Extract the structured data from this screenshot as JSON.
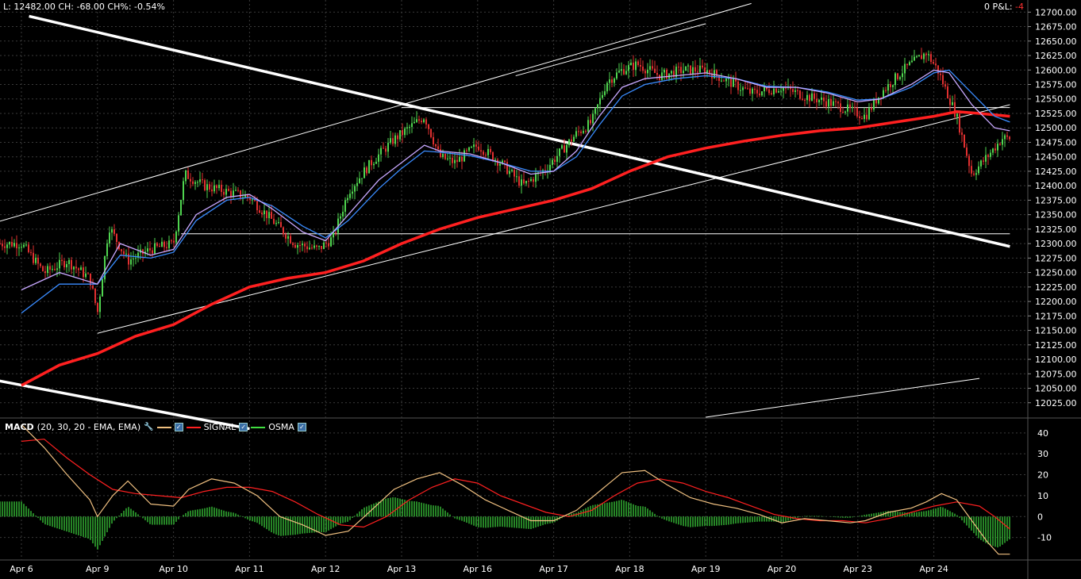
{
  "header": {
    "quote_text": "L: 12482.00 CH: -68.00 CH%: -0.54%",
    "pl_label": "0 P&L:",
    "pl_value": "-4"
  },
  "macd_legend": {
    "name": "MACD",
    "params": "(20, 30, 20 - EMA, EMA)",
    "signal_label": "SIGNAL",
    "osma_label": "OSMA"
  },
  "colors": {
    "background": "#000000",
    "grid": "#3a3a3a",
    "candle": "#4fd44f",
    "candle_down": "#e03030",
    "ema_fast": "#c8a8ff",
    "ema_slow": "#3a8cff",
    "sma_long": "#ff2020",
    "trend": "#ffffff",
    "macd": "#f0c080",
    "signal": "#ff2020",
    "osma": "#40dd40"
  },
  "chart_data": [
    {
      "type": "candlestick",
      "x_labels": [
        "Apr 6",
        "Apr 9",
        "Apr 10",
        "Apr 11",
        "Apr 12",
        "Apr 13",
        "Apr 16",
        "Apr 17",
        "Apr 18",
        "Apr 19",
        "Apr 20",
        "Apr 23",
        "Apr 24"
      ],
      "y_ticks": [
        "12700.00",
        "12675.00",
        "12650.00",
        "12625.00",
        "12600.00",
        "12575.00",
        "12550.00",
        "12525.00",
        "12500.00",
        "12475.00",
        "12450.00",
        "12425.00",
        "12400.00",
        "12375.00",
        "12350.00",
        "12325.00",
        "12300.00",
        "12275.00",
        "12250.00",
        "12225.00",
        "12200.00",
        "12175.00",
        "12150.00",
        "12125.00",
        "12100.00",
        "12075.00",
        "12050.00",
        "12025.00"
      ],
      "ylim": [
        12000,
        12710
      ],
      "last_price": 12482,
      "close_path": [
        [
          0,
          12300
        ],
        [
          0.3,
          12250
        ],
        [
          0.6,
          12270
        ],
        [
          0.9,
          12240
        ],
        [
          1.0,
          12180
        ],
        [
          1.15,
          12330
        ],
        [
          1.4,
          12270
        ],
        [
          1.7,
          12290
        ],
        [
          2.0,
          12300
        ],
        [
          2.15,
          12420
        ],
        [
          2.4,
          12400
        ],
        [
          2.7,
          12390
        ],
        [
          3.0,
          12380
        ],
        [
          3.3,
          12340
        ],
        [
          3.6,
          12300
        ],
        [
          3.9,
          12290
        ],
        [
          4.1,
          12310
        ],
        [
          4.3,
          12390
        ],
        [
          4.6,
          12440
        ],
        [
          4.9,
          12480
        ],
        [
          5.1,
          12500
        ],
        [
          5.3,
          12520
        ],
        [
          5.5,
          12450
        ],
        [
          5.7,
          12440
        ],
        [
          6.0,
          12470
        ],
        [
          6.3,
          12440
        ],
        [
          6.6,
          12400
        ],
        [
          6.9,
          12430
        ],
        [
          7.1,
          12460
        ],
        [
          7.3,
          12490
        ],
        [
          7.5,
          12510
        ],
        [
          7.7,
          12580
        ],
        [
          7.9,
          12600
        ],
        [
          8.1,
          12610
        ],
        [
          8.4,
          12590
        ],
        [
          8.7,
          12600
        ],
        [
          9.0,
          12600
        ],
        [
          9.3,
          12580
        ],
        [
          9.6,
          12560
        ],
        [
          10.0,
          12570
        ],
        [
          10.3,
          12555
        ],
        [
          10.6,
          12545
        ],
        [
          10.9,
          12530
        ],
        [
          11.1,
          12520
        ],
        [
          11.3,
          12560
        ],
        [
          11.6,
          12600
        ],
        [
          11.9,
          12630
        ],
        [
          12.05,
          12600
        ],
        [
          12.3,
          12520
        ],
        [
          12.5,
          12420
        ],
        [
          12.7,
          12450
        ],
        [
          12.9,
          12482
        ]
      ],
      "ema_fast_path": [
        [
          0,
          12220
        ],
        [
          0.5,
          12250
        ],
        [
          1.0,
          12230
        ],
        [
          1.3,
          12300
        ],
        [
          1.7,
          12280
        ],
        [
          2.0,
          12290
        ],
        [
          2.3,
          12350
        ],
        [
          2.7,
          12380
        ],
        [
          3.0,
          12385
        ],
        [
          3.3,
          12360
        ],
        [
          3.7,
          12320
        ],
        [
          4.0,
          12305
        ],
        [
          4.3,
          12350
        ],
        [
          4.7,
          12410
        ],
        [
          5.0,
          12440
        ],
        [
          5.3,
          12470
        ],
        [
          5.5,
          12460
        ],
        [
          5.9,
          12455
        ],
        [
          6.3,
          12440
        ],
        [
          6.7,
          12420
        ],
        [
          7.0,
          12425
        ],
        [
          7.3,
          12460
        ],
        [
          7.6,
          12520
        ],
        [
          7.9,
          12570
        ],
        [
          8.2,
          12585
        ],
        [
          8.6,
          12590
        ],
        [
          9.0,
          12595
        ],
        [
          9.4,
          12585
        ],
        [
          9.8,
          12570
        ],
        [
          10.2,
          12570
        ],
        [
          10.6,
          12560
        ],
        [
          11.0,
          12545
        ],
        [
          11.3,
          12550
        ],
        [
          11.7,
          12575
        ],
        [
          12.0,
          12600
        ],
        [
          12.2,
          12595
        ],
        [
          12.5,
          12540
        ],
        [
          12.8,
          12500
        ],
        [
          13.0,
          12495
        ]
      ],
      "ema_slow_path": [
        [
          0,
          12180
        ],
        [
          0.5,
          12230
        ],
        [
          1.0,
          12230
        ],
        [
          1.3,
          12280
        ],
        [
          1.7,
          12275
        ],
        [
          2.0,
          12285
        ],
        [
          2.3,
          12340
        ],
        [
          2.7,
          12375
        ],
        [
          3.0,
          12380
        ],
        [
          3.3,
          12365
        ],
        [
          3.7,
          12330
        ],
        [
          4.0,
          12310
        ],
        [
          4.3,
          12340
        ],
        [
          4.7,
          12395
        ],
        [
          5.0,
          12430
        ],
        [
          5.3,
          12460
        ],
        [
          5.5,
          12458
        ],
        [
          5.9,
          12452
        ],
        [
          6.3,
          12440
        ],
        [
          6.7,
          12425
        ],
        [
          7.0,
          12425
        ],
        [
          7.3,
          12450
        ],
        [
          7.6,
          12505
        ],
        [
          7.9,
          12555
        ],
        [
          8.2,
          12575
        ],
        [
          8.6,
          12585
        ],
        [
          9.0,
          12590
        ],
        [
          9.4,
          12585
        ],
        [
          9.8,
          12572
        ],
        [
          10.2,
          12570
        ],
        [
          10.6,
          12562
        ],
        [
          11.0,
          12548
        ],
        [
          11.3,
          12550
        ],
        [
          11.7,
          12570
        ],
        [
          12.0,
          12595
        ],
        [
          12.2,
          12600
        ],
        [
          12.5,
          12560
        ],
        [
          12.8,
          12520
        ],
        [
          13.0,
          12510
        ]
      ],
      "sma_long_path": [
        [
          0,
          12055
        ],
        [
          0.5,
          12090
        ],
        [
          1.0,
          12110
        ],
        [
          1.5,
          12140
        ],
        [
          2.0,
          12160
        ],
        [
          2.5,
          12195
        ],
        [
          3.0,
          12225
        ],
        [
          3.5,
          12240
        ],
        [
          4.0,
          12250
        ],
        [
          4.5,
          12270
        ],
        [
          5.0,
          12300
        ],
        [
          5.5,
          12325
        ],
        [
          6.0,
          12345
        ],
        [
          6.5,
          12360
        ],
        [
          7.0,
          12375
        ],
        [
          7.5,
          12395
        ],
        [
          8.0,
          12425
        ],
        [
          8.5,
          12450
        ],
        [
          9.0,
          12465
        ],
        [
          9.5,
          12477
        ],
        [
          10.0,
          12487
        ],
        [
          10.5,
          12495
        ],
        [
          11.0,
          12500
        ],
        [
          11.5,
          12510
        ],
        [
          12.0,
          12520
        ],
        [
          12.3,
          12528
        ],
        [
          12.6,
          12525
        ],
        [
          13.0,
          12520
        ]
      ],
      "trend_lines": [
        {
          "from": [
            0.1,
            12693
          ],
          "to": [
            13.0,
            12295
          ],
          "weight": "thick"
        },
        {
          "from": [
            -0.3,
            12063
          ],
          "to": [
            3.0,
            11980
          ],
          "weight": "thick"
        },
        {
          "from": [
            -0.3,
            12338
          ],
          "to": [
            9.6,
            12715
          ],
          "weight": "thin"
        },
        {
          "from": [
            6.5,
            12590
          ],
          "to": [
            9.0,
            12680
          ],
          "weight": "thin"
        },
        {
          "from": [
            1.0,
            12145
          ],
          "to": [
            13.0,
            12540
          ],
          "weight": "thin"
        },
        {
          "from": [
            9.0,
            12000
          ],
          "to": [
            12.6,
            12067
          ],
          "weight": "thin"
        },
        {
          "from": [
            5.0,
            12535
          ],
          "to": [
            13.0,
            12535
          ],
          "weight": "thin"
        },
        {
          "from": [
            2.1,
            12317
          ],
          "to": [
            13.0,
            12317
          ],
          "weight": "thin"
        }
      ]
    },
    {
      "type": "bar",
      "series": [
        {
          "name": "MACD",
          "values_path": [
            [
              0,
              44
            ],
            [
              0.3,
              33
            ],
            [
              0.6,
              20
            ],
            [
              0.9,
              8
            ],
            [
              1.0,
              0
            ],
            [
              1.2,
              10
            ],
            [
              1.4,
              17
            ],
            [
              1.7,
              6
            ],
            [
              2.0,
              5
            ],
            [
              2.2,
              13
            ],
            [
              2.5,
              18
            ],
            [
              2.8,
              16
            ],
            [
              3.1,
              10
            ],
            [
              3.4,
              0
            ],
            [
              3.7,
              -4
            ],
            [
              4.0,
              -9
            ],
            [
              4.3,
              -7
            ],
            [
              4.6,
              3
            ],
            [
              4.9,
              13
            ],
            [
              5.2,
              18
            ],
            [
              5.5,
              21
            ],
            [
              5.8,
              15
            ],
            [
              6.1,
              8
            ],
            [
              6.4,
              3
            ],
            [
              6.7,
              -2
            ],
            [
              7.0,
              -2
            ],
            [
              7.3,
              3
            ],
            [
              7.6,
              12
            ],
            [
              7.9,
              21
            ],
            [
              8.2,
              22
            ],
            [
              8.5,
              15
            ],
            [
              8.8,
              9
            ],
            [
              9.1,
              6
            ],
            [
              9.4,
              4
            ],
            [
              9.7,
              1
            ],
            [
              10.0,
              -3
            ],
            [
              10.3,
              -1
            ],
            [
              10.6,
              -2
            ],
            [
              10.9,
              -3
            ],
            [
              11.1,
              -2
            ],
            [
              11.4,
              2
            ],
            [
              11.7,
              4
            ],
            [
              11.9,
              7
            ],
            [
              12.1,
              11
            ],
            [
              12.3,
              8
            ],
            [
              12.5,
              -2
            ],
            [
              12.7,
              -12
            ],
            [
              12.85,
              -18
            ],
            [
              13.0,
              -18
            ]
          ]
        },
        {
          "name": "SIGNAL",
          "values_path": [
            [
              0,
              36
            ],
            [
              0.3,
              37
            ],
            [
              0.6,
              28
            ],
            [
              0.9,
              20
            ],
            [
              1.2,
              13
            ],
            [
              1.5,
              11
            ],
            [
              1.8,
              10
            ],
            [
              2.1,
              9
            ],
            [
              2.4,
              12
            ],
            [
              2.7,
              14
            ],
            [
              3.0,
              14
            ],
            [
              3.3,
              12
            ],
            [
              3.6,
              7
            ],
            [
              3.9,
              1
            ],
            [
              4.2,
              -4
            ],
            [
              4.5,
              -5
            ],
            [
              4.8,
              0
            ],
            [
              5.1,
              8
            ],
            [
              5.4,
              14
            ],
            [
              5.7,
              18
            ],
            [
              6.0,
              16
            ],
            [
              6.3,
              10
            ],
            [
              6.6,
              6
            ],
            [
              6.9,
              2
            ],
            [
              7.2,
              0
            ],
            [
              7.5,
              3
            ],
            [
              7.8,
              10
            ],
            [
              8.1,
              16
            ],
            [
              8.4,
              18
            ],
            [
              8.7,
              16
            ],
            [
              9.0,
              12
            ],
            [
              9.3,
              9
            ],
            [
              9.6,
              5
            ],
            [
              9.9,
              1
            ],
            [
              10.2,
              -1
            ],
            [
              10.5,
              -2
            ],
            [
              10.8,
              -2
            ],
            [
              11.1,
              -3
            ],
            [
              11.4,
              -1
            ],
            [
              11.7,
              2
            ],
            [
              12.0,
              5
            ],
            [
              12.3,
              7
            ],
            [
              12.6,
              5
            ],
            [
              12.8,
              0
            ],
            [
              13.0,
              -6
            ]
          ]
        }
      ],
      "y_ticks": [
        "40",
        "30",
        "20",
        "10",
        "0",
        "-10"
      ],
      "ylim": [
        -20,
        46
      ]
    }
  ]
}
